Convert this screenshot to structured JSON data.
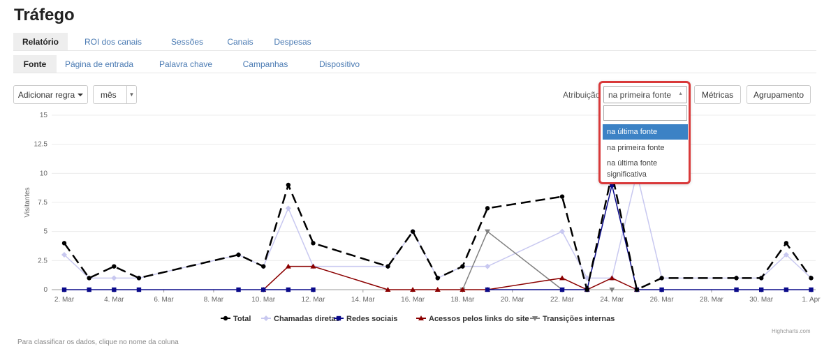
{
  "page": {
    "title": "Tráfego"
  },
  "primary_tabs": [
    {
      "label": "Relatório",
      "active": true
    },
    {
      "label": "ROI dos canais",
      "active": false
    },
    {
      "label": "Sessões",
      "active": false
    },
    {
      "label": "Canais",
      "active": false
    },
    {
      "label": "Despesas",
      "active": false
    }
  ],
  "secondary_tabs": [
    {
      "label": "Fonte",
      "active": true
    },
    {
      "label": "Página de entrada",
      "active": false
    },
    {
      "label": "Palavra chave",
      "active": false
    },
    {
      "label": "Campanhas",
      "active": false
    },
    {
      "label": "Dispositivo",
      "active": false
    }
  ],
  "toolbar": {
    "add_rule_label": "Adicionar regra",
    "period_value": "mês",
    "attribution_label": "Atribuição",
    "metrics_label": "Métricas",
    "grouping_label": "Agrupamento"
  },
  "attribution_dropdown": {
    "selected": "na primeira fonte",
    "search_value": "",
    "search_icon": "search-icon",
    "options": [
      "na última fonte",
      "na primeira fonte",
      "na última fonte significativa"
    ],
    "highlighted": "na última fonte",
    "border_color": "#d9393a"
  },
  "chart_data": {
    "type": "line",
    "ylabel": "Visitantes",
    "ylim": [
      0,
      15
    ],
    "y_ticks": [
      0,
      2.5,
      5,
      7.5,
      10,
      12.5,
      15
    ],
    "x_tick_labels": [
      "2. Mar",
      "4. Mar",
      "6. Mar",
      "8. Mar",
      "10. Mar",
      "12. Mar",
      "14. Mar",
      "16. Mar",
      "18. Mar",
      "20. Mar",
      "22. Mar",
      "24. Mar",
      "26. Mar",
      "28. Mar",
      "30. Mar",
      "1. Apr"
    ],
    "x": [
      0,
      1,
      2,
      3,
      7,
      8,
      9,
      10,
      13,
      14,
      15,
      16,
      17,
      20,
      21,
      22,
      23,
      24,
      27,
      28,
      29,
      30
    ],
    "legend_position": "bottom",
    "series": [
      {
        "name": "Total",
        "color": "#000000",
        "marker": "circle",
        "dash": true,
        "values": [
          4,
          1,
          2,
          1,
          3,
          2,
          9,
          4,
          2,
          5,
          1,
          2,
          7,
          8,
          0,
          10,
          0,
          1,
          1,
          1,
          4,
          1
        ]
      },
      {
        "name": "Chamadas diretas",
        "color": "#c8c8f0",
        "marker": "diamond",
        "dash": false,
        "values": [
          3,
          1,
          1,
          1,
          3,
          2,
          7,
          2,
          2,
          5,
          1,
          2,
          2,
          5,
          1,
          1,
          10,
          1,
          1,
          1,
          3,
          1
        ]
      },
      {
        "name": "Redes sociais",
        "color": "#0a0a8a",
        "marker": "square",
        "dash": false,
        "values": [
          0,
          0,
          0,
          0,
          0,
          0,
          0,
          0,
          null,
          null,
          null,
          null,
          0,
          0,
          0,
          9,
          0,
          0,
          0,
          0,
          0,
          0
        ]
      },
      {
        "name": "Acessos pelos links do site",
        "color": "#8b0000",
        "marker": "triangle",
        "dash": false,
        "values": [
          null,
          null,
          null,
          null,
          null,
          0,
          2,
          2,
          0,
          0,
          0,
          0,
          0,
          1,
          0,
          1,
          0,
          null,
          null,
          null,
          null,
          null
        ]
      },
      {
        "name": "Transições internas",
        "color": "#808080",
        "marker": "triangle-down",
        "dash": false,
        "values": [
          null,
          null,
          null,
          null,
          null,
          null,
          null,
          null,
          null,
          null,
          null,
          0,
          5,
          0,
          null,
          0,
          null,
          null,
          null,
          null,
          null,
          null
        ]
      }
    ]
  },
  "footer": {
    "sort_hint": "Para classificar os dados, clique no nome da coluna",
    "credits": "Highcharts.com"
  }
}
